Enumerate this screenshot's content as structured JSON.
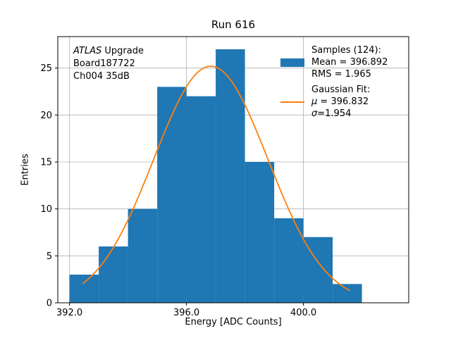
{
  "title": "Run 616",
  "xlabel": "Energy [ADC Counts]",
  "ylabel": "Entries",
  "annotation": {
    "line1_em": "ATLAS",
    "line1_rest": " Upgrade",
    "line2": "Board187722",
    "line3": "Ch004 35dB"
  },
  "legend": {
    "samples_header": "Samples (124):",
    "mean": "Mean = 396.892",
    "rms": "RMS = 1.965",
    "fit_header": "Gaussian Fit:",
    "mu_symbol": "μ",
    "mu_rest": " = 396.832",
    "sigma_symbol": "σ",
    "sigma_rest": "=1.954"
  },
  "colors": {
    "hist": "#1f77b4",
    "fit": "#ff7f0e",
    "grid": "#b0b0b0",
    "spine": "#000000"
  },
  "chart_data": {
    "type": "bar",
    "subtype": "histogram_with_gaussian_fit",
    "title": "Run 616",
    "xlabel": "Energy [ADC Counts]",
    "ylabel": "Entries",
    "bin_start": 392.0,
    "bin_width": 1.0,
    "counts": [
      3,
      6,
      10,
      23,
      22,
      27,
      15,
      9,
      7,
      2
    ],
    "total_entries": 124,
    "stats": {
      "mean": 396.892,
      "rms": 1.965
    },
    "gaussian_fit": {
      "mu": 396.832,
      "sigma": 1.954,
      "amplitude": 25.2,
      "x_min": 392.45,
      "x_max": 401.6
    },
    "x_ticks": [
      {
        "value": 392.0,
        "label": "392.0"
      },
      {
        "value": 396.0,
        "label": "396.0"
      },
      {
        "value": 400.0,
        "label": "400.0"
      }
    ],
    "y_ticks": [
      {
        "value": 0,
        "label": "0"
      },
      {
        "value": 5,
        "label": "5"
      },
      {
        "value": 10,
        "label": "10"
      },
      {
        "value": 15,
        "label": "15"
      },
      {
        "value": 20,
        "label": "20"
      },
      {
        "value": 25,
        "label": "25"
      }
    ],
    "xlim": [
      391.6,
      403.6
    ],
    "ylim": [
      0,
      28.35
    ],
    "grid": true,
    "legend_position": "upper right"
  }
}
